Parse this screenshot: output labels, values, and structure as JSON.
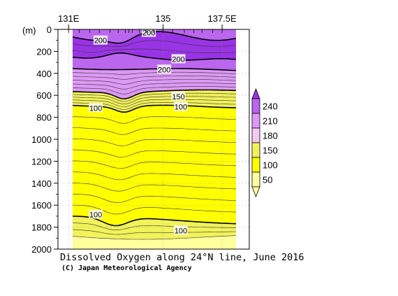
{
  "chart_data": {
    "type": "contour",
    "title": "Dissolved Oxygen along 24°N line, June 2016",
    "credit": "(C) Japan Meteorological Agency",
    "x_axis": {
      "unit": "degrees east longitude",
      "range": [
        130.55,
        138.65
      ],
      "tick_labels": [
        {
          "value": 131,
          "label": "131E"
        },
        {
          "value": 135,
          "label": "135"
        },
        {
          "value": 137.5,
          "label": "137.5E"
        }
      ]
    },
    "y_axis": {
      "unit_label": "(m)",
      "range": [
        0,
        2000
      ],
      "inverted": true,
      "tick_values": [
        0,
        200,
        400,
        600,
        800,
        1000,
        1200,
        1400,
        1600,
        1800,
        2000
      ]
    },
    "data_extent_lon": [
      131.0,
      138.2
    ],
    "station_longitudes": [
      131.0,
      131.45,
      131.9,
      132.3,
      132.75,
      133.1,
      133.4,
      133.55,
      133.7,
      134.0,
      134.3,
      134.6,
      135.0,
      135.4,
      135.9,
      136.3,
      136.65,
      137.1,
      137.5
    ],
    "legend": {
      "levels": [
        240,
        210,
        180,
        150,
        100,
        50
      ],
      "fill_colors": [
        "#9933e6",
        "#bb66ee",
        "#dd99f5",
        "#f6c8f6",
        "#f2f25a",
        "#ffff00",
        "#ffff9e"
      ]
    },
    "contours_labeled": [
      {
        "value": 200,
        "lon": 132.35,
        "depth": 100
      },
      {
        "value": 200,
        "lon": 134.4,
        "depth": 30
      },
      {
        "value": 200,
        "lon": 135.65,
        "depth": 270
      },
      {
        "value": 200,
        "lon": 135.05,
        "depth": 365
      },
      {
        "value": 150,
        "lon": 135.65,
        "depth": 610
      },
      {
        "value": 100,
        "lon": 132.15,
        "depth": 715
      },
      {
        "value": 100,
        "lon": 135.75,
        "depth": 705
      },
      {
        "value": 100,
        "lon": 132.15,
        "depth": 1685
      },
      {
        "value": 100,
        "lon": 135.75,
        "depth": 1830
      }
    ]
  }
}
